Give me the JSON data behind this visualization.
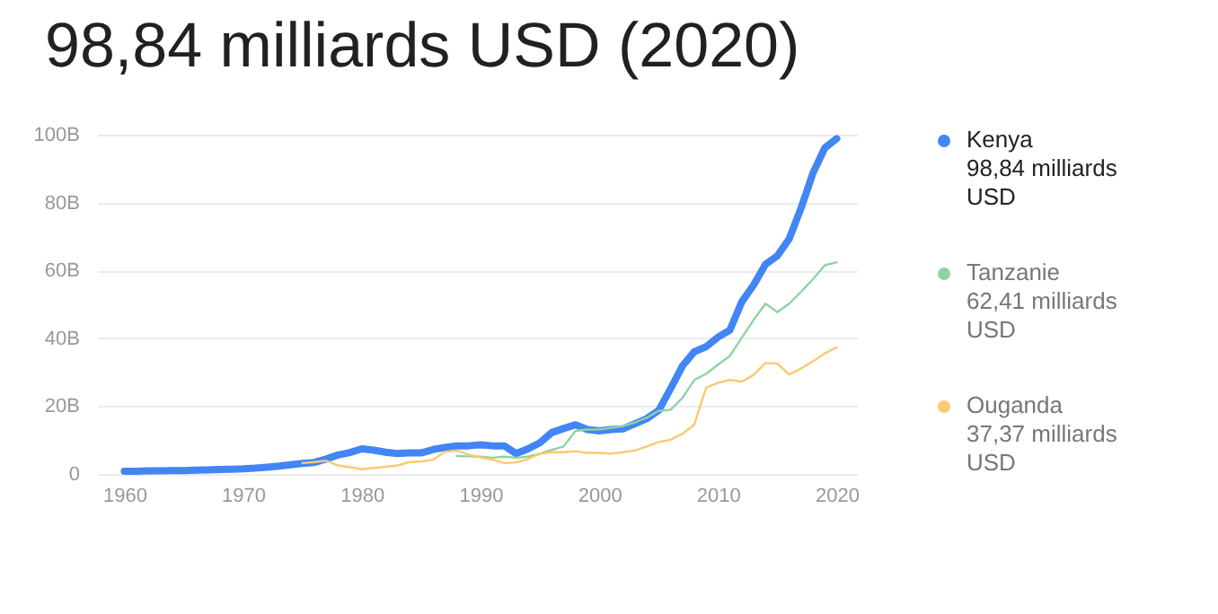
{
  "chart_data": {
    "type": "line",
    "title": "98,84 milliards USD (2020)",
    "x": [
      1960,
      1961,
      1962,
      1963,
      1964,
      1965,
      1966,
      1967,
      1968,
      1969,
      1970,
      1971,
      1972,
      1973,
      1974,
      1975,
      1976,
      1977,
      1978,
      1979,
      1980,
      1981,
      1982,
      1983,
      1984,
      1985,
      1986,
      1987,
      1988,
      1989,
      1990,
      1991,
      1992,
      1993,
      1994,
      1995,
      1996,
      1997,
      1998,
      1999,
      2000,
      2001,
      2002,
      2003,
      2004,
      2005,
      2006,
      2007,
      2008,
      2009,
      2010,
      2011,
      2012,
      2013,
      2014,
      2015,
      2016,
      2017,
      2018,
      2019,
      2020
    ],
    "series": [
      {
        "name": "Kenya",
        "color": "#4285f4",
        "values": [
          0.8,
          0.8,
          0.9,
          0.9,
          1.0,
          1.0,
          1.1,
          1.2,
          1.3,
          1.4,
          1.5,
          1.7,
          2.0,
          2.3,
          2.7,
          3.1,
          3.4,
          4.4,
          5.6,
          6.3,
          7.4,
          7.0,
          6.4,
          6.0,
          6.2,
          6.2,
          7.2,
          7.8,
          8.3,
          8.3,
          8.6,
          8.3,
          8.3,
          6.0,
          7.4,
          9.2,
          12.2,
          13.4,
          14.5,
          13.1,
          12.7,
          13.1,
          13.3,
          14.8,
          16.3,
          18.7,
          25.1,
          31.8,
          36.0,
          37.5,
          40.3,
          42.4,
          50.7,
          55.7,
          61.8,
          64.3,
          69.3,
          78.4,
          88.7,
          96.1,
          98.84
        ]
      },
      {
        "name": "Tanzanie",
        "color": "#8fd3a1",
        "values": [
          null,
          null,
          null,
          null,
          null,
          null,
          null,
          null,
          null,
          null,
          null,
          null,
          null,
          null,
          null,
          null,
          null,
          null,
          null,
          null,
          null,
          null,
          null,
          null,
          null,
          null,
          null,
          null,
          5.3,
          5.2,
          5.1,
          4.8,
          5.1,
          4.8,
          5.1,
          6.0,
          7.1,
          8.1,
          12.7,
          13.1,
          13.1,
          13.6,
          14.1,
          15.2,
          16.6,
          18.6,
          18.9,
          22.4,
          27.7,
          29.5,
          32.2,
          34.8,
          40.1,
          45.4,
          50.2,
          47.7,
          50.2,
          53.7,
          57.4,
          61.5,
          62.41
        ]
      },
      {
        "name": "Ouganda",
        "color": "#fbc96f",
        "values": [
          null,
          null,
          null,
          null,
          null,
          null,
          null,
          null,
          null,
          null,
          null,
          null,
          null,
          null,
          null,
          3.2,
          3.5,
          3.9,
          2.5,
          2.0,
          1.4,
          1.8,
          2.1,
          2.5,
          3.5,
          3.7,
          4.2,
          6.5,
          6.9,
          5.7,
          4.9,
          4.2,
          3.2,
          3.4,
          4.4,
          6.0,
          6.4,
          6.4,
          6.7,
          6.2,
          6.2,
          6.0,
          6.4,
          6.9,
          8.1,
          9.4,
          10.1,
          11.8,
          14.5,
          25.4,
          26.9,
          27.7,
          27.2,
          29.2,
          32.7,
          32.5,
          29.3,
          31.1,
          33.2,
          35.5,
          37.37
        ]
      }
    ],
    "annotations": [
      "98,84 milliards USD",
      "62,41 milliards USD",
      "37,37 milliards USD"
    ],
    "xlim": [
      1957.7,
      2021.7
    ],
    "xticks": [
      1960,
      1970,
      1980,
      1990,
      2000,
      2010,
      2020
    ],
    "ylim": [
      0,
      100
    ],
    "yticks": [
      0,
      {
        "value": 20,
        "label": "20B"
      },
      {
        "value": 40,
        "label": "40B"
      },
      {
        "value": 60,
        "label": "60B"
      },
      {
        "value": 80,
        "label": "80B"
      },
      {
        "value": 100,
        "label": "100B"
      }
    ],
    "grid": "y",
    "legend": "right"
  }
}
